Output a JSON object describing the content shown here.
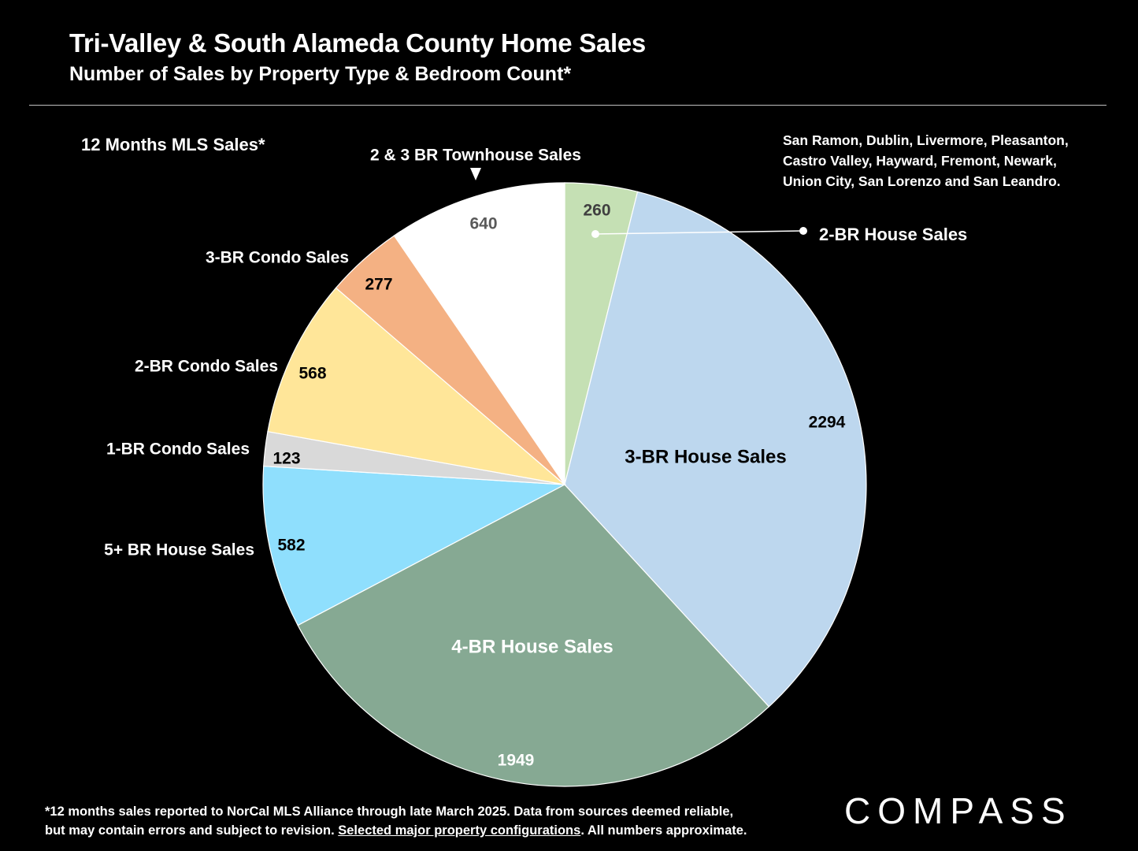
{
  "header": {
    "title": "Tri-Valley & South Alameda County Home Sales",
    "subtitle": "Number of Sales by Property Type & Bedroom Count*"
  },
  "period_label": "12 Months MLS Sales*",
  "areas": [
    "San Ramon, Dublin, Livermore, Pleasanton,",
    "Castro Valley, Hayward, Fremont, Newark,",
    "Union City, San Lorenzo and San Leandro."
  ],
  "footnote": {
    "line1": "*12 months sales reported to NorCal MLS Alliance through late March 2025. Data from sources deemed reliable,",
    "line2_pre": "but may contain errors and subject to revision. ",
    "line2_link": "Selected major property configurations",
    "line2_post": ". All numbers approximate."
  },
  "logo_text": "COMPASS",
  "chart_data": {
    "type": "pie",
    "start": "top",
    "direction": "clockwise",
    "slices": [
      {
        "label": "2-BR House Sales",
        "value": 260,
        "color": "#c5e0b4"
      },
      {
        "label": "3-BR House Sales",
        "value": 2294,
        "color": "#bdd7ee"
      },
      {
        "label": "4-BR House Sales",
        "value": 1949,
        "color": "#86a993"
      },
      {
        "label": "5+ BR House Sales",
        "value": 582,
        "color": "#8fdffd"
      },
      {
        "label": "1-BR Condo Sales",
        "value": 123,
        "color": "#d9d9d9"
      },
      {
        "label": "2-BR Condo Sales",
        "value": 568,
        "color": "#ffe699"
      },
      {
        "label": "3-BR Condo Sales",
        "value": 277,
        "color": "#f4b183"
      },
      {
        "label": "2 & 3 BR Townhouse Sales",
        "value": 640,
        "color": "#ffffff"
      }
    ],
    "value_label_colors": {
      "2-BR House Sales": "#404040",
      "3-BR House Sales": "#000000",
      "4-BR House Sales": "#ffffff",
      "5+ BR House Sales": "#000000",
      "1-BR Condo Sales": "#000000",
      "2-BR Condo Sales": "#000000",
      "3-BR Condo Sales": "#000000",
      "2 & 3 BR Townhouse Sales": "#595959"
    }
  }
}
